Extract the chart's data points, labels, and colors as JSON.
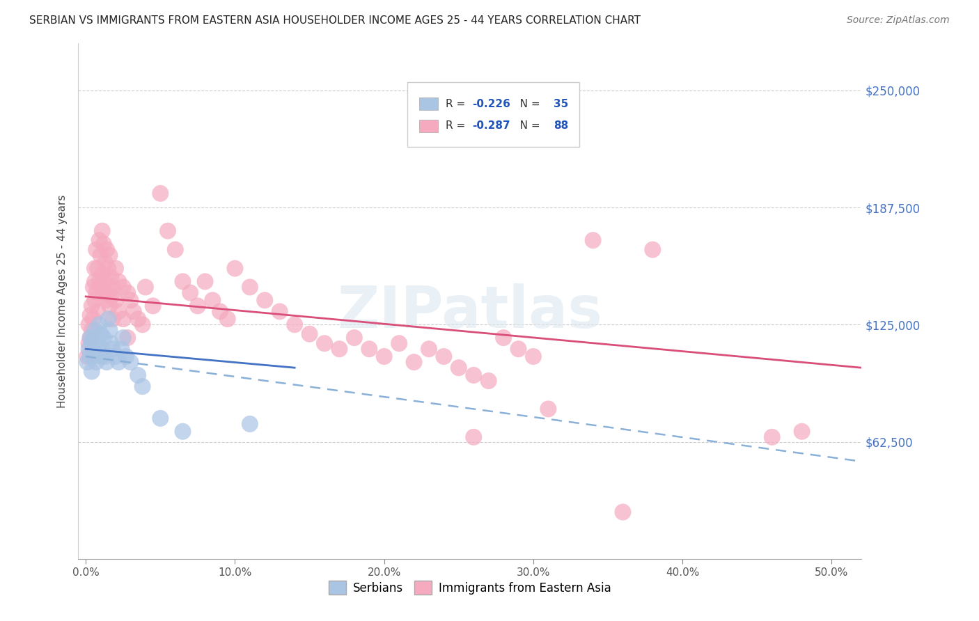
{
  "title": "SERBIAN VS IMMIGRANTS FROM EASTERN ASIA HOUSEHOLDER INCOME AGES 25 - 44 YEARS CORRELATION CHART",
  "source": "Source: ZipAtlas.com",
  "ylabel": "Householder Income Ages 25 - 44 years",
  "xlabel_ticks": [
    "0.0%",
    "10.0%",
    "20.0%",
    "30.0%",
    "40.0%",
    "50.0%"
  ],
  "xlabel_vals": [
    0.0,
    0.1,
    0.2,
    0.3,
    0.4,
    0.5
  ],
  "ytick_labels": [
    "$62,500",
    "$125,000",
    "$187,500",
    "$250,000"
  ],
  "ytick_vals": [
    62500,
    125000,
    187500,
    250000
  ],
  "ylim": [
    0,
    275000
  ],
  "xlim": [
    -0.005,
    0.52
  ],
  "watermark": "ZIPatlas",
  "legend_R1": "-0.226",
  "legend_N1": "35",
  "legend_R2": "-0.287",
  "legend_N2": "88",
  "serbian_color": "#aac4e4",
  "eastern_color": "#f5aabf",
  "trend_serbian_color": "#4472c4",
  "trend_eastern_color": "#d94f7a",
  "trend_serbian_dash_color": "#8ab0d8",
  "serbian_scatter": [
    [
      0.001,
      105000
    ],
    [
      0.002,
      112000
    ],
    [
      0.003,
      108000
    ],
    [
      0.003,
      118000
    ],
    [
      0.004,
      100000
    ],
    [
      0.004,
      115000
    ],
    [
      0.005,
      118000
    ],
    [
      0.005,
      108000
    ],
    [
      0.006,
      122000
    ],
    [
      0.006,
      112000
    ],
    [
      0.007,
      118000
    ],
    [
      0.007,
      105000
    ],
    [
      0.008,
      115000
    ],
    [
      0.009,
      125000
    ],
    [
      0.01,
      120000
    ],
    [
      0.01,
      108000
    ],
    [
      0.011,
      112000
    ],
    [
      0.012,
      118000
    ],
    [
      0.013,
      108000
    ],
    [
      0.014,
      105000
    ],
    [
      0.015,
      128000
    ],
    [
      0.016,
      122000
    ],
    [
      0.017,
      115000
    ],
    [
      0.018,
      112000
    ],
    [
      0.02,
      108000
    ],
    [
      0.022,
      105000
    ],
    [
      0.024,
      112000
    ],
    [
      0.025,
      118000
    ],
    [
      0.027,
      108000
    ],
    [
      0.03,
      105000
    ],
    [
      0.035,
      98000
    ],
    [
      0.038,
      92000
    ],
    [
      0.05,
      75000
    ],
    [
      0.065,
      68000
    ],
    [
      0.11,
      72000
    ]
  ],
  "eastern_scatter": [
    [
      0.001,
      108000
    ],
    [
      0.002,
      125000
    ],
    [
      0.002,
      115000
    ],
    [
      0.003,
      130000
    ],
    [
      0.003,
      118000
    ],
    [
      0.004,
      135000
    ],
    [
      0.004,
      122000
    ],
    [
      0.005,
      145000
    ],
    [
      0.005,
      128000
    ],
    [
      0.006,
      155000
    ],
    [
      0.006,
      138000
    ],
    [
      0.006,
      148000
    ],
    [
      0.007,
      165000
    ],
    [
      0.007,
      142000
    ],
    [
      0.008,
      155000
    ],
    [
      0.008,
      132000
    ],
    [
      0.009,
      170000
    ],
    [
      0.009,
      148000
    ],
    [
      0.01,
      162000
    ],
    [
      0.01,
      145000
    ],
    [
      0.011,
      175000
    ],
    [
      0.011,
      152000
    ],
    [
      0.012,
      168000
    ],
    [
      0.012,
      142000
    ],
    [
      0.013,
      158000
    ],
    [
      0.013,
      148000
    ],
    [
      0.014,
      165000
    ],
    [
      0.014,
      138000
    ],
    [
      0.015,
      155000
    ],
    [
      0.015,
      142000
    ],
    [
      0.016,
      162000
    ],
    [
      0.016,
      135000
    ],
    [
      0.017,
      150000
    ],
    [
      0.017,
      140000
    ],
    [
      0.018,
      145000
    ],
    [
      0.018,
      128000
    ],
    [
      0.02,
      155000
    ],
    [
      0.02,
      138000
    ],
    [
      0.022,
      148000
    ],
    [
      0.022,
      132000
    ],
    [
      0.025,
      145000
    ],
    [
      0.025,
      128000
    ],
    [
      0.028,
      142000
    ],
    [
      0.028,
      118000
    ],
    [
      0.03,
      138000
    ],
    [
      0.032,
      132000
    ],
    [
      0.035,
      128000
    ],
    [
      0.038,
      125000
    ],
    [
      0.04,
      145000
    ],
    [
      0.045,
      135000
    ],
    [
      0.05,
      195000
    ],
    [
      0.055,
      175000
    ],
    [
      0.06,
      165000
    ],
    [
      0.065,
      148000
    ],
    [
      0.07,
      142000
    ],
    [
      0.075,
      135000
    ],
    [
      0.08,
      148000
    ],
    [
      0.085,
      138000
    ],
    [
      0.09,
      132000
    ],
    [
      0.095,
      128000
    ],
    [
      0.1,
      155000
    ],
    [
      0.11,
      145000
    ],
    [
      0.12,
      138000
    ],
    [
      0.13,
      132000
    ],
    [
      0.14,
      125000
    ],
    [
      0.15,
      120000
    ],
    [
      0.16,
      115000
    ],
    [
      0.17,
      112000
    ],
    [
      0.18,
      118000
    ],
    [
      0.19,
      112000
    ],
    [
      0.2,
      108000
    ],
    [
      0.21,
      115000
    ],
    [
      0.22,
      105000
    ],
    [
      0.23,
      112000
    ],
    [
      0.24,
      108000
    ],
    [
      0.25,
      102000
    ],
    [
      0.26,
      98000
    ],
    [
      0.27,
      95000
    ],
    [
      0.28,
      118000
    ],
    [
      0.29,
      112000
    ],
    [
      0.3,
      108000
    ],
    [
      0.34,
      170000
    ],
    [
      0.38,
      165000
    ],
    [
      0.46,
      65000
    ],
    [
      0.48,
      68000
    ],
    [
      0.31,
      80000
    ],
    [
      0.36,
      25000
    ],
    [
      0.26,
      65000
    ]
  ],
  "trend_serbian_x0": 0.0,
  "trend_serbian_x1": 0.14,
  "trend_serbian_y0": 112000,
  "trend_serbian_y1": 102000,
  "trend_serbian_dash_x0": 0.0,
  "trend_serbian_dash_x1": 0.52,
  "trend_serbian_dash_y0": 108000,
  "trend_serbian_dash_y1": 52000,
  "trend_eastern_x0": 0.0,
  "trend_eastern_x1": 0.52,
  "trend_eastern_y0": 140000,
  "trend_eastern_y1": 102000
}
